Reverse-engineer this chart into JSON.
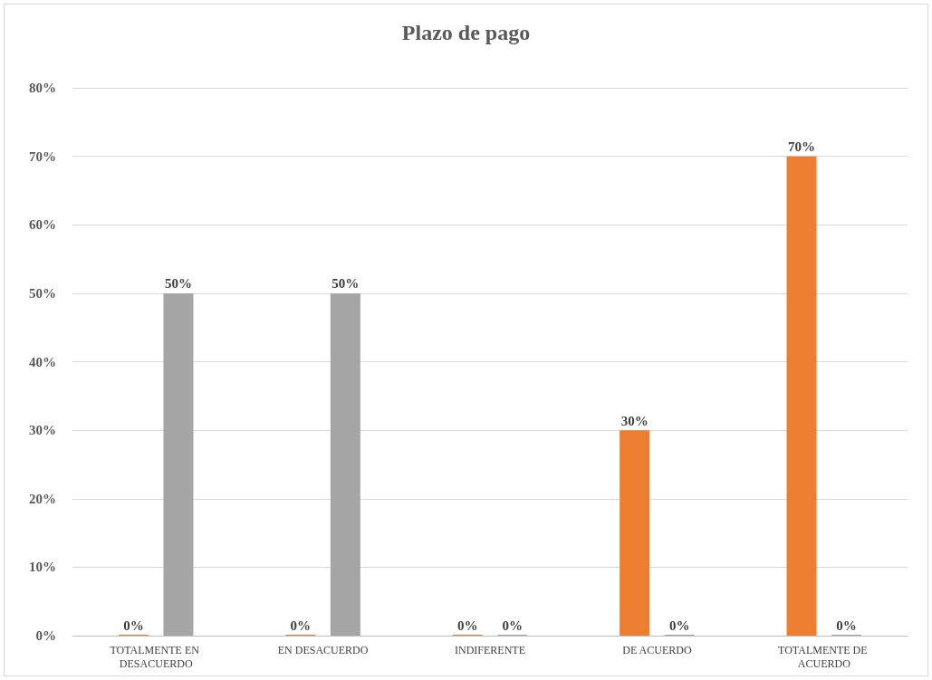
{
  "chart_data": {
    "type": "bar",
    "title": "Plazo de pago",
    "categories": [
      "TOTALMENTE EN DESACUERDO",
      "EN DESACUERDO",
      "INDIFERENTE",
      "DE ACUERDO",
      "TOTALMENTE DE ACUERDO"
    ],
    "series": [
      {
        "color": "#ed7d31",
        "values": [
          0,
          0,
          0,
          30,
          70
        ],
        "value_labels": [
          "0%",
          "0%",
          "0%",
          "30%",
          "70%"
        ]
      },
      {
        "color": "#a5a5a5",
        "values": [
          50,
          50,
          0,
          0,
          0
        ],
        "value_labels": [
          "50%",
          "50%",
          "0%",
          "0%",
          "0%"
        ]
      }
    ],
    "ylim": [
      0,
      80
    ],
    "yticks": [
      {
        "value": 0,
        "label": "0%"
      },
      {
        "value": 10,
        "label": "10%"
      },
      {
        "value": 20,
        "label": "20%"
      },
      {
        "value": 30,
        "label": "30%"
      },
      {
        "value": 40,
        "label": "40%"
      },
      {
        "value": 50,
        "label": "50%"
      },
      {
        "value": 60,
        "label": "60%"
      },
      {
        "value": 70,
        "label": "70%"
      },
      {
        "value": 80,
        "label": "80%"
      }
    ],
    "grid": "y"
  }
}
